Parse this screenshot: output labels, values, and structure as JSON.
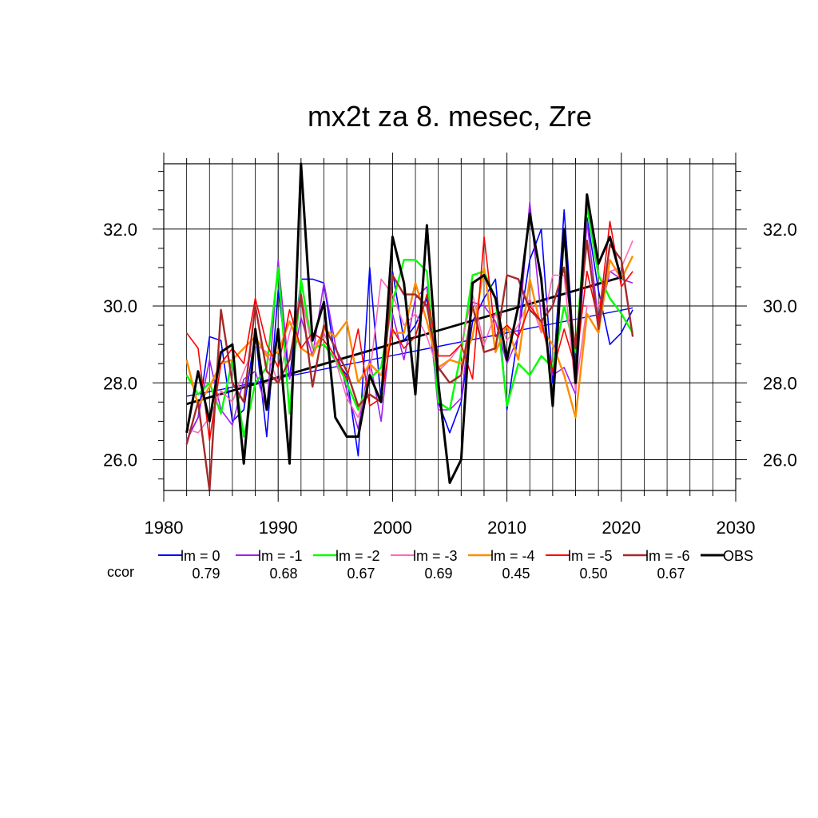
{
  "chart_data": {
    "type": "line",
    "title": "mx2t za 8. mesec, Zre",
    "xlabel": "",
    "ylabel": "",
    "xlim": [
      1980,
      2030
    ],
    "ylim": [
      25.2,
      33.7
    ],
    "x_ticks": [
      1980,
      1990,
      2000,
      2010,
      2020,
      2030
    ],
    "x_tick_labels": [
      "1980",
      "1990",
      "2000",
      "2010",
      "2020",
      "2030"
    ],
    "y_ticks": [
      26,
      28,
      30,
      32
    ],
    "y_tick_labels": [
      "26.0",
      "28.0",
      "30.0",
      "32.0"
    ],
    "grid": true,
    "legend_placement": "bottom",
    "x": [
      1982,
      1983,
      1984,
      1985,
      1986,
      1987,
      1988,
      1989,
      1990,
      1991,
      1992,
      1993,
      1994,
      1995,
      1996,
      1997,
      1998,
      1999,
      2000,
      2001,
      2002,
      2003,
      2004,
      2005,
      2006,
      2007,
      2008,
      2009,
      2010,
      2011,
      2012,
      2013,
      2014,
      2015,
      2016,
      2017,
      2018,
      2019,
      2020,
      2021
    ],
    "series": [
      {
        "name": "lm = 0",
        "color": "#0000ff",
        "width": 1.6,
        "values": [
          26.5,
          27.1,
          29.2,
          29.1,
          27.0,
          27.3,
          29.3,
          26.6,
          30.4,
          28.1,
          30.7,
          30.7,
          30.6,
          28.6,
          28.2,
          26.1,
          31.0,
          27.5,
          30.9,
          29.1,
          29.5,
          30.2,
          27.5,
          26.7,
          27.5,
          29.6,
          30.2,
          30.7,
          27.3,
          29.3,
          31.2,
          32.0,
          28.0,
          32.5,
          28.3,
          32.3,
          30.4,
          29.0,
          29.3,
          29.9
        ]
      },
      {
        "name": "lm = -1",
        "color": "#a020f0",
        "width": 1.6,
        "values": [
          26.5,
          27.1,
          28.6,
          27.3,
          26.9,
          28.1,
          28.3,
          27.3,
          31.2,
          28.1,
          29.7,
          28.7,
          30.6,
          29.0,
          27.8,
          26.8,
          28.6,
          27.0,
          29.8,
          28.6,
          30.2,
          30.5,
          27.3,
          27.3,
          27.6,
          30.1,
          30.0,
          29.6,
          28.5,
          29.2,
          32.7,
          29.7,
          28.2,
          28.4,
          27.7,
          32.2,
          29.6,
          30.9,
          30.7,
          30.6
        ]
      },
      {
        "name": "lm = -2",
        "color": "#00ff00",
        "width": 2.4,
        "values": [
          28.2,
          27.7,
          28.0,
          27.2,
          28.6,
          26.6,
          28.0,
          28.4,
          31.0,
          27.2,
          30.7,
          28.9,
          29.0,
          28.6,
          28.0,
          27.3,
          28.1,
          28.4,
          30.1,
          31.2,
          31.2,
          30.9,
          27.5,
          27.3,
          28.8,
          30.8,
          30.9,
          30.2,
          27.4,
          28.5,
          28.2,
          28.7,
          28.4,
          30.0,
          28.8,
          32.6,
          30.8,
          30.2,
          29.8,
          29.3
        ]
      },
      {
        "name": "lm = -3",
        "color": "#ff69b4",
        "width": 1.6,
        "values": [
          26.8,
          26.7,
          27.1,
          27.8,
          27.5,
          28.3,
          29.0,
          28.8,
          28.0,
          29.3,
          30.3,
          28.9,
          29.3,
          28.6,
          27.6,
          27.1,
          28.2,
          30.7,
          30.3,
          29.5,
          29.8,
          29.2,
          28.3,
          28.6,
          29.0,
          30.3,
          29.0,
          29.8,
          29.1,
          29.5,
          30.2,
          29.3,
          30.8,
          30.8,
          27.8,
          30.0,
          30.0,
          30.9,
          31.0,
          31.7
        ]
      },
      {
        "name": "lm = -4",
        "color": "#ff8c00",
        "width": 2.4,
        "values": [
          28.6,
          27.4,
          27.9,
          28.5,
          28.6,
          28.9,
          29.2,
          28.7,
          28.8,
          29.6,
          28.9,
          28.7,
          29.4,
          29.2,
          29.6,
          28.0,
          28.5,
          28.2,
          29.3,
          29.3,
          30.6,
          29.6,
          28.4,
          28.6,
          28.5,
          29.2,
          31.0,
          28.8,
          29.5,
          28.6,
          30.7,
          29.4,
          29.0,
          28.2,
          27.1,
          29.8,
          29.3,
          31.2,
          30.7,
          31.3
        ]
      },
      {
        "name": "lm = -5",
        "color": "#ff0000",
        "width": 1.6,
        "values": [
          29.3,
          28.9,
          26.5,
          28.5,
          28.9,
          28.5,
          30.2,
          29.0,
          28.4,
          29.9,
          28.9,
          29.3,
          29.1,
          28.7,
          28.1,
          29.4,
          27.4,
          27.6,
          29.4,
          28.9,
          29.2,
          30.3,
          28.7,
          28.7,
          29.0,
          28.1,
          31.8,
          29.2,
          29.5,
          29.2,
          30.0,
          29.6,
          28.3,
          29.4,
          28.4,
          30.9,
          29.6,
          32.2,
          30.5,
          30.9
        ]
      },
      {
        "name": "lm = -6",
        "color": "#a52a2a",
        "width": 2.4,
        "values": [
          26.4,
          27.5,
          25.2,
          29.9,
          28.0,
          27.5,
          30.0,
          28.3,
          28.0,
          28.6,
          30.3,
          27.9,
          29.5,
          28.9,
          28.3,
          27.4,
          27.7,
          27.5,
          30.8,
          30.3,
          30.3,
          30.0,
          28.4,
          28.0,
          28.2,
          30.0,
          28.8,
          28.9,
          30.8,
          30.7,
          29.9,
          29.6,
          30.0,
          31.0,
          28.9,
          31.7,
          29.4,
          31.6,
          31.2,
          29.2
        ]
      },
      {
        "name": "OBS",
        "color": "#000000",
        "width": 3.0,
        "values": [
          26.7,
          28.3,
          27.0,
          28.8,
          29.0,
          25.9,
          29.4,
          27.3,
          29.4,
          25.9,
          33.7,
          29.1,
          30.1,
          27.1,
          26.6,
          26.6,
          28.2,
          27.5,
          31.8,
          30.6,
          27.7,
          32.1,
          28.0,
          25.4,
          26.0,
          30.6,
          30.8,
          30.2,
          28.6,
          30.0,
          32.4,
          30.7,
          27.4,
          32.0,
          28.0,
          32.9,
          31.1,
          31.8,
          30.7,
          null
        ]
      }
    ],
    "trend_lines": [
      {
        "color": "#0000ff",
        "width": 1.4,
        "x": [
          1982,
          2021
        ],
        "y": [
          27.65,
          29.95
        ]
      },
      {
        "color": "#000000",
        "width": 2.8,
        "x": [
          1982,
          2020
        ],
        "y": [
          27.45,
          30.75
        ]
      }
    ],
    "ccor": {
      "label": "ccor",
      "label_color": "#0000ff",
      "values": [
        "0.79",
        "0.68",
        "0.67",
        "0.69",
        "0.45",
        "0.50",
        "0.67"
      ]
    }
  }
}
